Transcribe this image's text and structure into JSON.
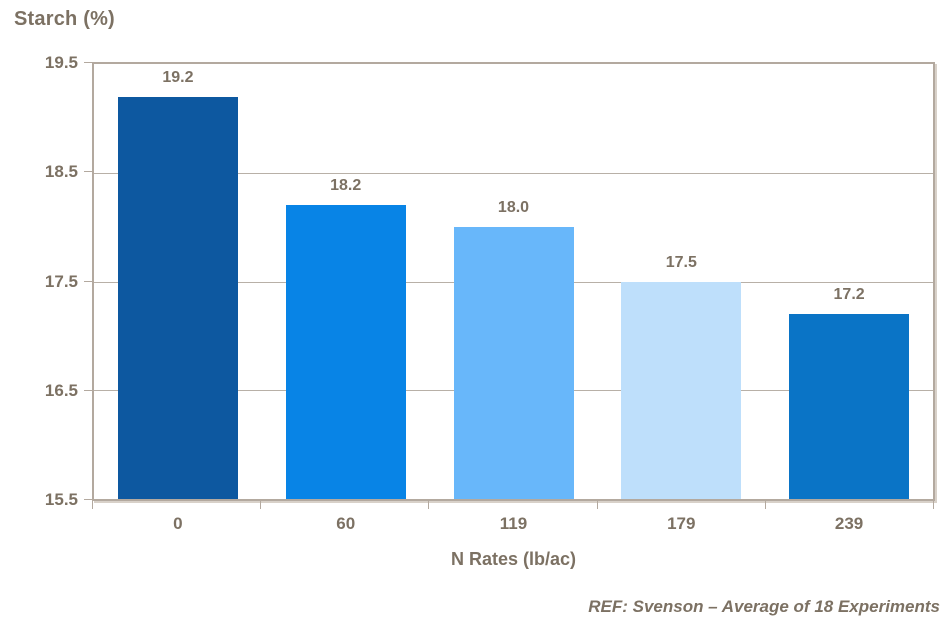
{
  "chart_data": {
    "type": "bar",
    "title": "Starch (%)",
    "xlabel": "N Rates (lb/ac)",
    "categories": [
      "0",
      "60",
      "119",
      "179",
      "239"
    ],
    "values": [
      19.2,
      18.2,
      18.0,
      17.5,
      17.2
    ],
    "value_labels": [
      "19.2",
      "18.2",
      "18.0",
      "17.5",
      "17.2"
    ],
    "bar_colors": [
      "#0d58a0",
      "#0884e6",
      "#68b7fa",
      "#bedffb",
      "#0a74c6"
    ],
    "ylim": [
      15.5,
      19.5
    ],
    "yticks": [
      15.5,
      16.5,
      17.5,
      18.5,
      19.5
    ],
    "ytick_labels": [
      "15.5",
      "16.5",
      "17.5",
      "18.5",
      "19.5"
    ],
    "grid": true,
    "legend": "none",
    "annotation": "REF: Svenson – Average of 18 Experiments"
  },
  "colors": {
    "text": "#7c7163",
    "axis_border": "#b3a99f",
    "gridline": "#b8b0a7",
    "background": "#ffffff"
  }
}
